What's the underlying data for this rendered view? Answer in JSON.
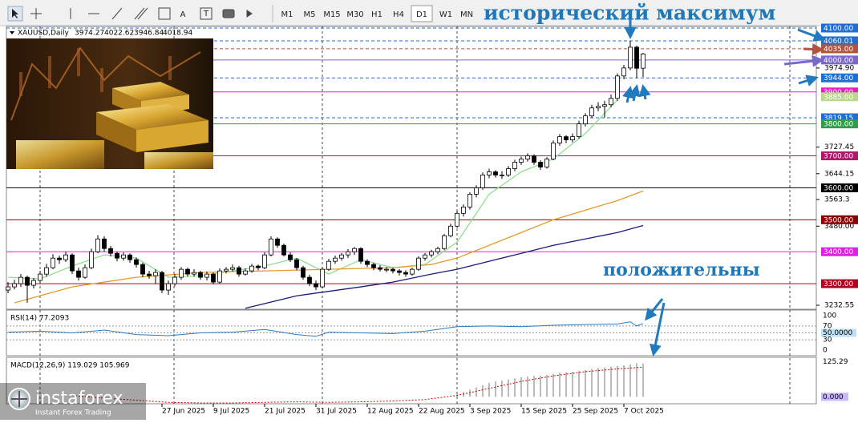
{
  "toolbar": {
    "tools": [
      "A"
    ],
    "timeframes": [
      "M1",
      "M5",
      "M15",
      "M30",
      "H1",
      "H4",
      "D1",
      "W1",
      "MN"
    ],
    "active": "D1"
  },
  "chart_data": {
    "type": "candlestick",
    "symbol": "XAUUSD,Daily",
    "annotations": [
      "исторический максимум",
      "положительны"
    ],
    "ylim": [
      3220,
      4105
    ],
    "categories": [
      null,
      null,
      null,
      null,
      null,
      null,
      null,
      null,
      null,
      null,
      null,
      null,
      null,
      null,
      null,
      null,
      null,
      null,
      null,
      null,
      null,
      null,
      null,
      null,
      "27 Jun 2025",
      null,
      null,
      null,
      null,
      null,
      null,
      null,
      "9 Jul 2025",
      null,
      null,
      null,
      null,
      null,
      null,
      null,
      "21 Jul 2025",
      null,
      null,
      null,
      null,
      null,
      null,
      null,
      "31 Jul 2025",
      null,
      null,
      null,
      null,
      null,
      null,
      null,
      "12 Aug 2025",
      null,
      null,
      null,
      null,
      null,
      null,
      null,
      "22 Aug 2025",
      null,
      null,
      null,
      null,
      null,
      null,
      null,
      "3 Sep 2025",
      null,
      null,
      null,
      null,
      null,
      null,
      null,
      "15 Sep 2025",
      null,
      null,
      null,
      null,
      null,
      null,
      null,
      "25 Sep 2025",
      null,
      null,
      null,
      null,
      null,
      null,
      null,
      "7 Oct 2025",
      null,
      null,
      null
    ],
    "ohlc": [
      [
        3280,
        3305,
        3270,
        3290
      ],
      [
        3290,
        3312,
        3282,
        3300
      ],
      [
        3300,
        3330,
        3290,
        3320
      ],
      [
        3320,
        3325,
        3240,
        3295
      ],
      [
        3295,
        3318,
        3285,
        3310
      ],
      [
        3310,
        3340,
        3302,
        3330
      ],
      [
        3330,
        3362,
        3322,
        3350
      ],
      [
        3350,
        3392,
        3345,
        3380
      ],
      [
        3380,
        3388,
        3362,
        3375
      ],
      [
        3375,
        3400,
        3368,
        3390
      ],
      [
        3390,
        3395,
        3330,
        3340
      ],
      [
        3340,
        3350,
        3310,
        3320
      ],
      [
        3320,
        3360,
        3315,
        3350
      ],
      [
        3350,
        3410,
        3345,
        3400
      ],
      [
        3400,
        3452,
        3395,
        3440
      ],
      [
        3440,
        3448,
        3400,
        3410
      ],
      [
        3410,
        3418,
        3385,
        3395
      ],
      [
        3395,
        3400,
        3370,
        3380
      ],
      [
        3380,
        3398,
        3372,
        3390
      ],
      [
        3390,
        3395,
        3365,
        3375
      ],
      [
        3375,
        3382,
        3350,
        3360
      ],
      [
        3360,
        3366,
        3320,
        3330
      ],
      [
        3330,
        3340,
        3315,
        3325
      ],
      [
        3325,
        3345,
        3300,
        3335
      ],
      [
        3335,
        3340,
        3270,
        3280
      ],
      [
        3280,
        3310,
        3265,
        3300
      ],
      [
        3300,
        3330,
        3292,
        3320
      ],
      [
        3320,
        3352,
        3312,
        3345
      ],
      [
        3345,
        3350,
        3322,
        3330
      ],
      [
        3330,
        3345,
        3322,
        3335
      ],
      [
        3335,
        3340,
        3312,
        3320
      ],
      [
        3320,
        3338,
        3310,
        3330
      ],
      [
        3330,
        3335,
        3298,
        3305
      ],
      [
        3305,
        3348,
        3300,
        3340
      ],
      [
        3340,
        3352,
        3332,
        3345
      ],
      [
        3345,
        3360,
        3338,
        3350
      ],
      [
        3350,
        3356,
        3322,
        3330
      ],
      [
        3330,
        3348,
        3325,
        3340
      ],
      [
        3340,
        3362,
        3334,
        3355
      ],
      [
        3355,
        3360,
        3342,
        3350
      ],
      [
        3350,
        3398,
        3345,
        3390
      ],
      [
        3390,
        3448,
        3385,
        3440
      ],
      [
        3440,
        3445,
        3412,
        3420
      ],
      [
        3420,
        3426,
        3385,
        3390
      ],
      [
        3390,
        3398,
        3368,
        3375
      ],
      [
        3375,
        3380,
        3342,
        3350
      ],
      [
        3350,
        3356,
        3312,
        3320
      ],
      [
        3320,
        3328,
        3292,
        3300
      ],
      [
        3300,
        3310,
        3280,
        3290
      ],
      [
        3290,
        3352,
        3285,
        3345
      ],
      [
        3345,
        3378,
        3340,
        3370
      ],
      [
        3370,
        3388,
        3362,
        3380
      ],
      [
        3380,
        3396,
        3372,
        3390
      ],
      [
        3390,
        3408,
        3380,
        3400
      ],
      [
        3400,
        3415,
        3390,
        3410
      ],
      [
        3410,
        3414,
        3362,
        3370
      ],
      [
        3370,
        3376,
        3352,
        3360
      ],
      [
        3360,
        3366,
        3342,
        3350
      ],
      [
        3350,
        3358,
        3338,
        3345
      ],
      [
        3345,
        3352,
        3336,
        3345
      ],
      [
        3345,
        3350,
        3332,
        3340
      ],
      [
        3340,
        3346,
        3326,
        3335
      ],
      [
        3335,
        3342,
        3322,
        3330
      ],
      [
        3330,
        3350,
        3325,
        3345
      ],
      [
        3345,
        3386,
        3340,
        3380
      ],
      [
        3380,
        3396,
        3372,
        3390
      ],
      [
        3390,
        3406,
        3382,
        3400
      ],
      [
        3400,
        3416,
        3392,
        3410
      ],
      [
        3410,
        3456,
        3405,
        3450
      ],
      [
        3450,
        3488,
        3445,
        3480
      ],
      [
        3480,
        3528,
        3475,
        3520
      ],
      [
        3520,
        3548,
        3510,
        3540
      ],
      [
        3540,
        3586,
        3532,
        3580
      ],
      [
        3580,
        3608,
        3570,
        3600
      ],
      [
        3600,
        3648,
        3594,
        3640
      ],
      [
        3640,
        3660,
        3630,
        3650
      ],
      [
        3650,
        3655,
        3632,
        3640
      ],
      [
        3640,
        3652,
        3628,
        3640
      ],
      [
        3640,
        3668,
        3634,
        3660
      ],
      [
        3660,
        3688,
        3652,
        3680
      ],
      [
        3680,
        3698,
        3672,
        3690
      ],
      [
        3690,
        3708,
        3682,
        3700
      ],
      [
        3700,
        3705,
        3672,
        3680
      ],
      [
        3680,
        3686,
        3656,
        3665
      ],
      [
        3665,
        3696,
        3660,
        3690
      ],
      [
        3690,
        3748,
        3686,
        3740
      ],
      [
        3740,
        3768,
        3732,
        3760
      ],
      [
        3760,
        3765,
        3740,
        3750
      ],
      [
        3750,
        3770,
        3742,
        3760
      ],
      [
        3760,
        3810,
        3754,
        3800
      ],
      [
        3800,
        3834,
        3792,
        3825
      ],
      [
        3825,
        3860,
        3818,
        3850
      ],
      [
        3850,
        3868,
        3840,
        3855
      ],
      [
        3855,
        3872,
        3820,
        3860
      ],
      [
        3860,
        3892,
        3852,
        3880
      ],
      [
        3880,
        3958,
        3872,
        3950
      ],
      [
        3950,
        3985,
        3940,
        3975
      ],
      [
        3975,
        4060.01,
        3968,
        4040
      ],
      [
        4040,
        4045,
        3944,
        3974
      ],
      [
        3974.27,
        4022.62,
        3946.84,
        4018.94
      ]
    ],
    "up_color": "#ffffff",
    "down_color": "#000000",
    "overlays": [
      {
        "color": "#8fe08f",
        "x": [
          0,
          5,
          10,
          15,
          20,
          25,
          30,
          35,
          40,
          45,
          50,
          55,
          60,
          65,
          70,
          75,
          80,
          85,
          90,
          95
        ],
        "values": [
          3320,
          3315,
          3355,
          3390,
          3380,
          3320,
          3325,
          3340,
          3355,
          3380,
          3330,
          3375,
          3350,
          3360,
          3430,
          3580,
          3650,
          3690,
          3770,
          3875
        ]
      },
      {
        "color": "#e39a2d",
        "x": [
          1,
          10,
          20,
          30,
          40,
          50,
          60,
          66,
          70,
          75,
          80,
          85,
          90,
          95,
          99
        ],
        "values": [
          3240,
          3290,
          3320,
          3335,
          3340,
          3345,
          3350,
          3360,
          3380,
          3420,
          3460,
          3500,
          3530,
          3560,
          3590
        ]
      },
      {
        "color": "#1a1a7a",
        "x": [
          37,
          45,
          55,
          60,
          66,
          70,
          75,
          80,
          85,
          90,
          95,
          99
        ],
        "values": [
          3223,
          3262,
          3290,
          3305,
          3330,
          3345,
          3370,
          3395,
          3420,
          3440,
          3460,
          3482
        ]
      }
    ],
    "yticks": [
      {
        "value": 3974.9,
        "label": "3974.90"
      },
      3727.45,
      3644.15,
      3563.3,
      {
        "value": 3480,
        "label": "3480.00"
      },
      3232.55
    ],
    "levels": [
      {
        "value": 4100,
        "label": "4100.00",
        "color": "#1e6fd0",
        "style": "dashed"
      },
      {
        "value": 4060.01,
        "label": "4060.01",
        "color": "#1e6fd0",
        "style": "dashed"
      },
      {
        "value": 4035,
        "label": "4035.00",
        "color": "#b5513f",
        "style": "dashed"
      },
      {
        "value": 4000,
        "label": "4000.00",
        "color": "#7b68c8",
        "style": "solid"
      },
      {
        "value": 3944,
        "label": "3944.00",
        "color": "#1e6fd0",
        "style": "dashed"
      },
      {
        "value": 3900,
        "label": "3900.00",
        "color": "#e020c0",
        "style": "solid"
      },
      {
        "value": 3885,
        "label": "3885.00",
        "color": "#b8d98a",
        "style": "none"
      },
      {
        "value": 3819.15,
        "label": "3819.15",
        "color": "#1e6fd0",
        "style": "dashed"
      },
      {
        "value": 3800,
        "label": "3800.00",
        "color": "#2e9e4a",
        "style": "solid"
      },
      {
        "value": 3700,
        "label": "3700.00",
        "color": "#b0186c",
        "style": "solid"
      },
      {
        "value": 3600,
        "label": "3600.00",
        "color": "#000000",
        "style": "solid"
      },
      {
        "value": 3500,
        "label": "3500.00",
        "color": "#8b0000",
        "style": "solid"
      },
      {
        "value": 3400,
        "label": "3400.00",
        "color": "#e020e0",
        "style": "solid"
      },
      {
        "value": 3300,
        "label": "3300.00",
        "color": "#b00020",
        "style": "solid"
      }
    ],
    "rsi": {
      "label": "RSI(14) 77.2093",
      "ylim": [
        0,
        100
      ],
      "yticks": [
        100,
        70,
        {
          "value": 50,
          "label": "50.0000"
        },
        30,
        0
      ],
      "color": "#2b7bc0",
      "x": [
        0,
        5,
        10,
        15,
        20,
        25,
        30,
        35,
        40,
        45,
        48,
        50,
        55,
        60,
        65,
        70,
        75,
        80,
        85,
        90,
        95,
        97,
        98,
        99
      ],
      "values": [
        52,
        55,
        50,
        58,
        45,
        42,
        50,
        52,
        60,
        45,
        40,
        52,
        50,
        48,
        55,
        68,
        70,
        68,
        72,
        74,
        76,
        82,
        70,
        77.2093
      ]
    },
    "macd": {
      "label": "MACD(12,26,9) 119.029 105.969",
      "ylim": [
        -25,
        130
      ],
      "yticks": [
        125.29,
        {
          "value": 0,
          "label": "0.000"
        }
      ],
      "hist_color": "#8c8c8c",
      "signal_color": "#cc0000",
      "hist_x": [
        70,
        71,
        72,
        73,
        74,
        75,
        76,
        77,
        78,
        79,
        80,
        81,
        82,
        83,
        84,
        85,
        86,
        87,
        88,
        89,
        90,
        91,
        92,
        93,
        94,
        95,
        96,
        97,
        98,
        99
      ],
      "histogram": [
        10,
        18,
        26,
        34,
        42,
        50,
        55,
        58,
        62,
        66,
        70,
        73,
        75,
        76,
        78,
        82,
        86,
        88,
        90,
        93,
        96,
        100,
        103,
        105,
        108,
        110,
        113,
        116,
        120,
        119.029
      ],
      "signal_x": [
        10,
        15,
        20,
        25,
        30,
        35,
        40,
        45,
        50,
        55,
        60,
        65,
        70,
        75,
        80,
        85,
        90,
        95,
        99
      ],
      "signal": [
        5,
        -5,
        -12,
        -20,
        -22,
        -22,
        -20,
        -18,
        -20,
        -18,
        -15,
        -10,
        5,
        30,
        55,
        75,
        90,
        100,
        105.969
      ]
    }
  },
  "logo": {
    "name": "instaforex",
    "tagline": "Instant Forex Trading"
  }
}
